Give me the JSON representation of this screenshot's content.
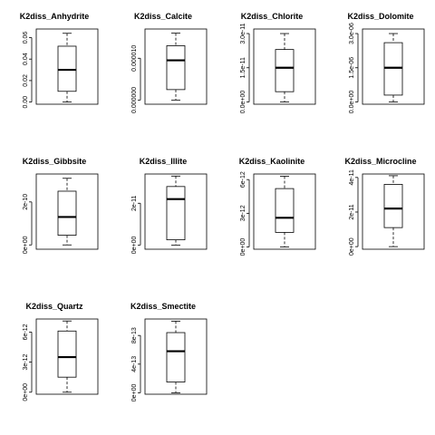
{
  "chart_data": [
    {
      "type": "boxplot",
      "title": "K2diss_Anhydrite",
      "yticks": [
        "0.00",
        "0.02",
        "0.04",
        "0.06"
      ],
      "yticks_values": [
        0,
        0.02,
        0.04,
        0.06
      ],
      "ylim": [
        -0.002,
        0.068
      ],
      "box": {
        "min": 0.0,
        "q1": 0.01,
        "median": 0.03,
        "q3": 0.052,
        "max": 0.064
      }
    },
    {
      "type": "boxplot",
      "title": "K2diss_Calcite",
      "yticks": [
        "0.000000",
        "0.000010"
      ],
      "yticks_values": [
        0,
        1e-05
      ],
      "ylim": [
        -1e-06,
        1.7e-05
      ],
      "box": {
        "min": 0.0,
        "q1": 2.5e-06,
        "median": 9.5e-06,
        "q3": 1.3e-05,
        "max": 1.6e-05
      }
    },
    {
      "type": "boxplot",
      "title": "K2diss_Chlorite",
      "yticks": [
        "0.0e+00",
        "1.5e-11",
        "3.0e-11"
      ],
      "yticks_values": [
        0,
        1.5e-11,
        3e-11
      ],
      "ylim": [
        -1e-12,
        3.2e-11
      ],
      "box": {
        "min": 0.0,
        "q1": 4.5e-12,
        "median": 1.5e-11,
        "q3": 2.3e-11,
        "max": 3e-11
      }
    },
    {
      "type": "boxplot",
      "title": "K2diss_Dolomite",
      "yticks": [
        "0.0e+00",
        "1.5e-06",
        "3.0e-06"
      ],
      "yticks_values": [
        0,
        1.5e-06,
        3e-06
      ],
      "ylim": [
        -1e-07,
        3.2e-06
      ],
      "box": {
        "min": 0.0,
        "q1": 3e-07,
        "median": 1.5e-06,
        "q3": 2.6e-06,
        "max": 3e-06
      }
    },
    {
      "type": "boxplot",
      "title": "K2diss_Gibbsite",
      "yticks": [
        "0e+00",
        "2e-10"
      ],
      "yticks_values": [
        0,
        2e-10
      ],
      "ylim": [
        -2e-11,
        3.3e-10
      ],
      "box": {
        "min": 0.0,
        "q1": 4.5e-11,
        "median": 1.3e-10,
        "q3": 2.5e-10,
        "max": 3.1e-10
      }
    },
    {
      "type": "boxplot",
      "title": "K2diss_Illite",
      "yticks": [
        "0e+00",
        "2e-11"
      ],
      "yticks_values": [
        0,
        2e-11
      ],
      "ylim": [
        -2e-12,
        3.4e-11
      ],
      "box": {
        "min": 0.0,
        "q1": 2.5e-12,
        "median": 2.2e-11,
        "q3": 2.8e-11,
        "max": 3.3e-11
      }
    },
    {
      "type": "boxplot",
      "title": "K2diss_Kaolinite",
      "yticks": [
        "0e+00",
        "3e-12",
        "6e-12"
      ],
      "yticks_values": [
        0,
        3e-12,
        6e-12
      ],
      "ylim": [
        -2e-13,
        6.5e-12
      ],
      "box": {
        "min": 0.0,
        "q1": 1.3e-12,
        "median": 2.6e-12,
        "q3": 5.2e-12,
        "max": 6.3e-12
      }
    },
    {
      "type": "boxplot",
      "title": "K2diss_Microcline",
      "yticks": [
        "0e+00",
        "2e-11",
        "4e-11"
      ],
      "yticks_values": [
        0,
        2e-11,
        4e-11
      ],
      "ylim": [
        -1.5e-12,
        4.2e-11
      ],
      "box": {
        "min": 0.0,
        "q1": 1.1e-11,
        "median": 2.2e-11,
        "q3": 3.6e-11,
        "max": 4.1e-11
      }
    },
    {
      "type": "boxplot",
      "title": "K2diss_Quartz",
      "yticks": [
        "0e+00",
        "3e-12",
        "6e-12"
      ],
      "yticks_values": [
        0,
        3e-12,
        6e-12
      ],
      "ylim": [
        -2e-13,
        7.3e-12
      ],
      "box": {
        "min": 0.0,
        "q1": 1.5e-12,
        "median": 3.5e-12,
        "q3": 6.1e-12,
        "max": 7.1e-12
      }
    },
    {
      "type": "boxplot",
      "title": "K2diss_Smectite",
      "yticks": [
        "0e+00",
        "4e-13",
        "8e-13"
      ],
      "yticks_values": [
        0,
        4e-13,
        8e-13
      ],
      "ylim": [
        -2e-14,
        1.03e-12
      ],
      "box": {
        "min": 0.0,
        "q1": 1.5e-13,
        "median": 5.8e-13,
        "q3": 8.4e-13,
        "max": 1e-12
      }
    }
  ]
}
